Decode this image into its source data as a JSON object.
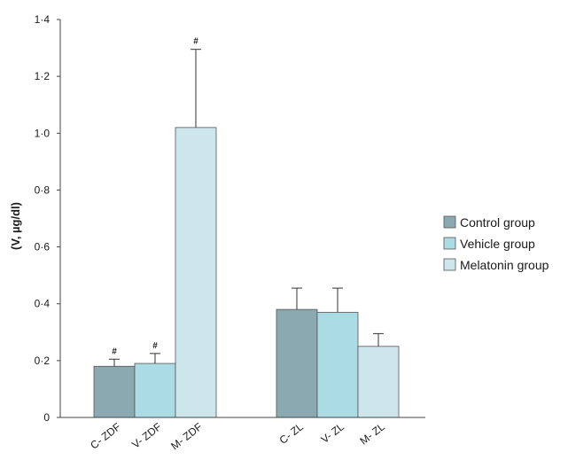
{
  "chart_data": {
    "type": "bar",
    "title": "",
    "xlabel": "",
    "ylabel": "(V, µg/dl)",
    "ylim": [
      0,
      1.4
    ],
    "yticks": [
      "0",
      "0·2",
      "0·4",
      "0·6",
      "0·8",
      "1·0",
      "1·2",
      "1·4"
    ],
    "grid": false,
    "legend_position": "right",
    "groups": [
      {
        "bars": [
          {
            "label": "C- ZDF",
            "series": "Control group",
            "value": 0.18,
            "error": 0.025,
            "marker": "#"
          },
          {
            "label": "V- ZDF",
            "series": "Vehicle group",
            "value": 0.19,
            "error": 0.035,
            "marker": "#"
          },
          {
            "label": "M- ZDF",
            "series": "Melatonin group",
            "value": 1.02,
            "error": 0.275,
            "marker": "#"
          }
        ]
      },
      {
        "bars": [
          {
            "label": "C- ZL",
            "series": "Control group",
            "value": 0.38,
            "error": 0.075,
            "marker": ""
          },
          {
            "label": "V- ZL",
            "series": "Vehicle group",
            "value": 0.37,
            "error": 0.085,
            "marker": ""
          },
          {
            "label": "M- ZL",
            "series": "Melatonin group",
            "value": 0.25,
            "error": 0.045,
            "marker": ""
          }
        ]
      }
    ],
    "series": [
      {
        "name": "Control group",
        "color": "#8aa9b1"
      },
      {
        "name": "Vehicle group",
        "color": "#abdbe3"
      },
      {
        "name": "Melatonin group",
        "color": "#cde6ec"
      }
    ]
  }
}
